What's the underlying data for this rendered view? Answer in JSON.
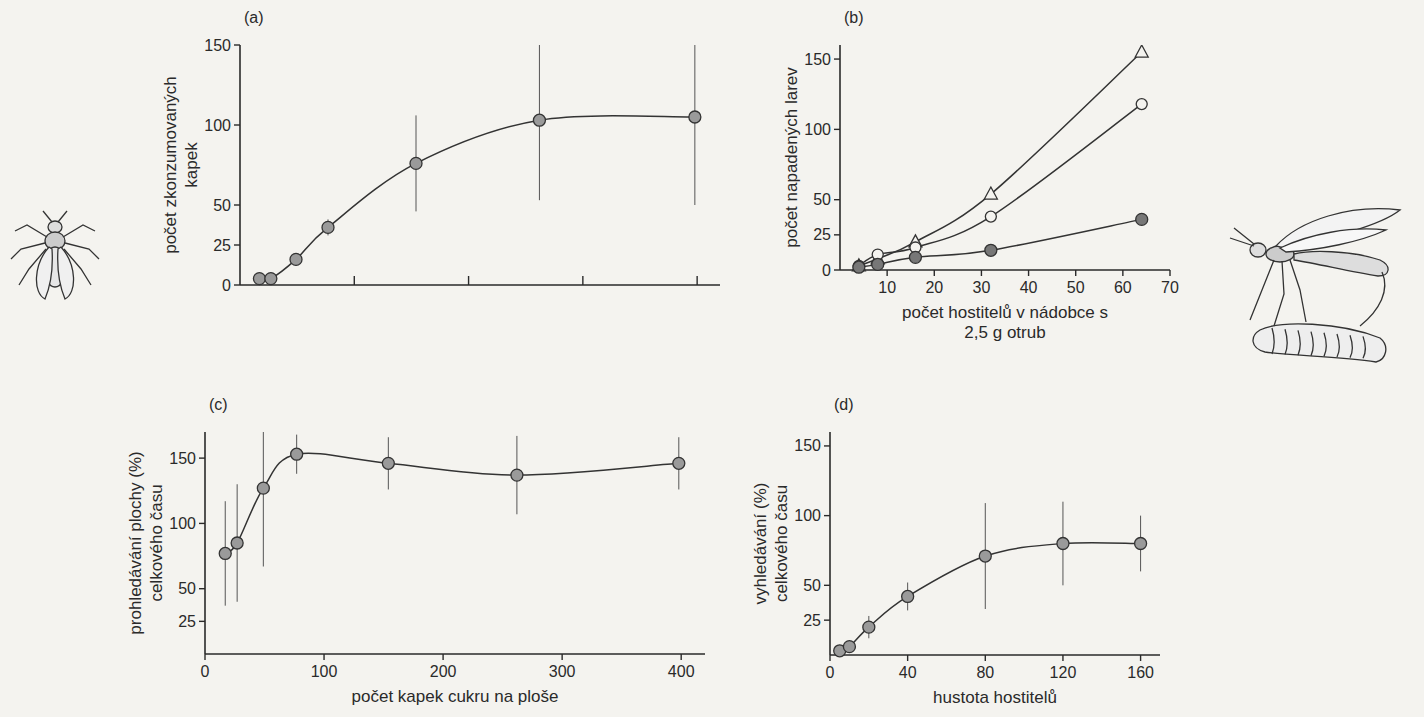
{
  "chart_data": [
    {
      "type": "line",
      "title": "(a)",
      "y_label": "počet zkonzumovaných kapek",
      "x": [
        17,
        27,
        49,
        77,
        154,
        262,
        398
      ],
      "series": [
        {
          "values": [
            4,
            4,
            16,
            36,
            76,
            103,
            105
          ],
          "errors": [
            1,
            1,
            4,
            5,
            30,
            50,
            55
          ],
          "color": "#9a9a9a",
          "marker": "circle"
        }
      ],
      "xlim": [
        0,
        420
      ],
      "ylim": [
        0,
        150
      ],
      "xticks": [
        100,
        200,
        300,
        400
      ],
      "yticks": [
        0,
        25,
        50,
        100,
        150
      ],
      "tick_labels": "y"
    },
    {
      "type": "line",
      "title": "(b)",
      "x_label": "počet hostitelů v nádobce s 2,5 g otrub",
      "y_label": "počet napadených larev",
      "x": [
        4,
        8,
        16,
        32,
        64
      ],
      "series": [
        {
          "values": [
            3,
            8,
            20,
            54,
            155
          ],
          "color": "#555555",
          "marker": "triangle"
        },
        {
          "values": [
            3,
            11,
            16,
            38,
            118
          ],
          "color": "#555555",
          "marker": "circle-open"
        },
        {
          "values": [
            2,
            4,
            9,
            14,
            36
          ],
          "color": "#777777",
          "marker": "circle"
        }
      ],
      "xlim": [
        0,
        70
      ],
      "ylim": [
        0,
        160
      ],
      "xticks": [
        10,
        20,
        30,
        40,
        50,
        60,
        70
      ],
      "yticks": [
        0,
        25,
        50,
        100,
        150
      ]
    },
    {
      "type": "line",
      "title": "(c)",
      "x_label": "počet kapek cukru na ploše",
      "y_label": "prohledávání plochy (%) celkového času",
      "x": [
        17,
        27,
        49,
        77,
        154,
        262,
        398
      ],
      "series": [
        {
          "values": [
            77,
            85,
            127,
            153,
            146,
            137,
            146
          ],
          "errors": [
            40,
            45,
            60,
            15,
            20,
            30,
            20
          ],
          "color": "#9a9a9a",
          "marker": "circle"
        }
      ],
      "xlim": [
        0,
        420
      ],
      "ylim": [
        0,
        170
      ],
      "xticks": [
        0,
        100,
        200,
        300,
        400
      ],
      "yticks": [
        25,
        50,
        100,
        150
      ]
    },
    {
      "type": "line",
      "title": "(d)",
      "x_label": "hustota hostitelů",
      "y_label": "vyhledávání (%) celkového času",
      "x": [
        5,
        10,
        20,
        40,
        80,
        120,
        160
      ],
      "series": [
        {
          "values": [
            3,
            6,
            20,
            42,
            71,
            80,
            80
          ],
          "errors": [
            2,
            4,
            8,
            10,
            38,
            30,
            20
          ],
          "color": "#9a9a9a",
          "marker": "circle"
        }
      ],
      "xlim": [
        0,
        170
      ],
      "ylim": [
        0,
        160
      ],
      "xticks": [
        0,
        40,
        80,
        120,
        160
      ],
      "yticks": [
        25,
        50,
        100,
        150
      ]
    }
  ]
}
